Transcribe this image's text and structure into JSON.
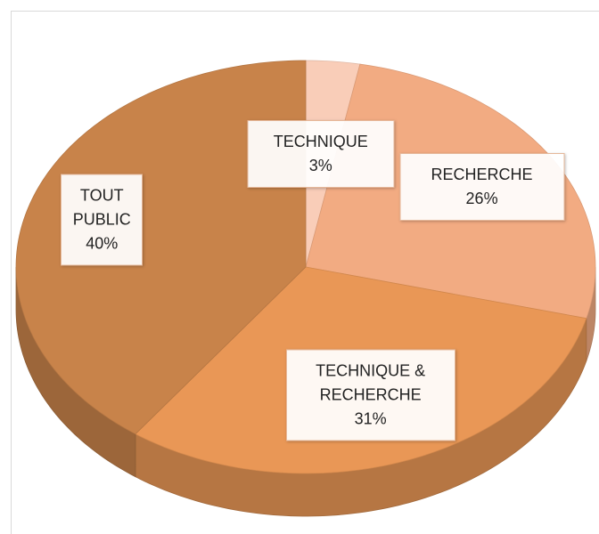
{
  "chart_data": {
    "type": "pie",
    "style": "3d",
    "categories": [
      "TECHNIQUE",
      "RECHERCHE",
      "TECHNIQUE & RECHERCHE",
      "TOUT PUBLIC"
    ],
    "values": [
      3,
      26,
      31,
      40
    ],
    "value_labels": [
      "3%",
      "26%",
      "31%",
      "40%"
    ],
    "colors": [
      "#f9cdb8",
      "#f2ab82",
      "#e99756",
      "#c8834a"
    ]
  }
}
